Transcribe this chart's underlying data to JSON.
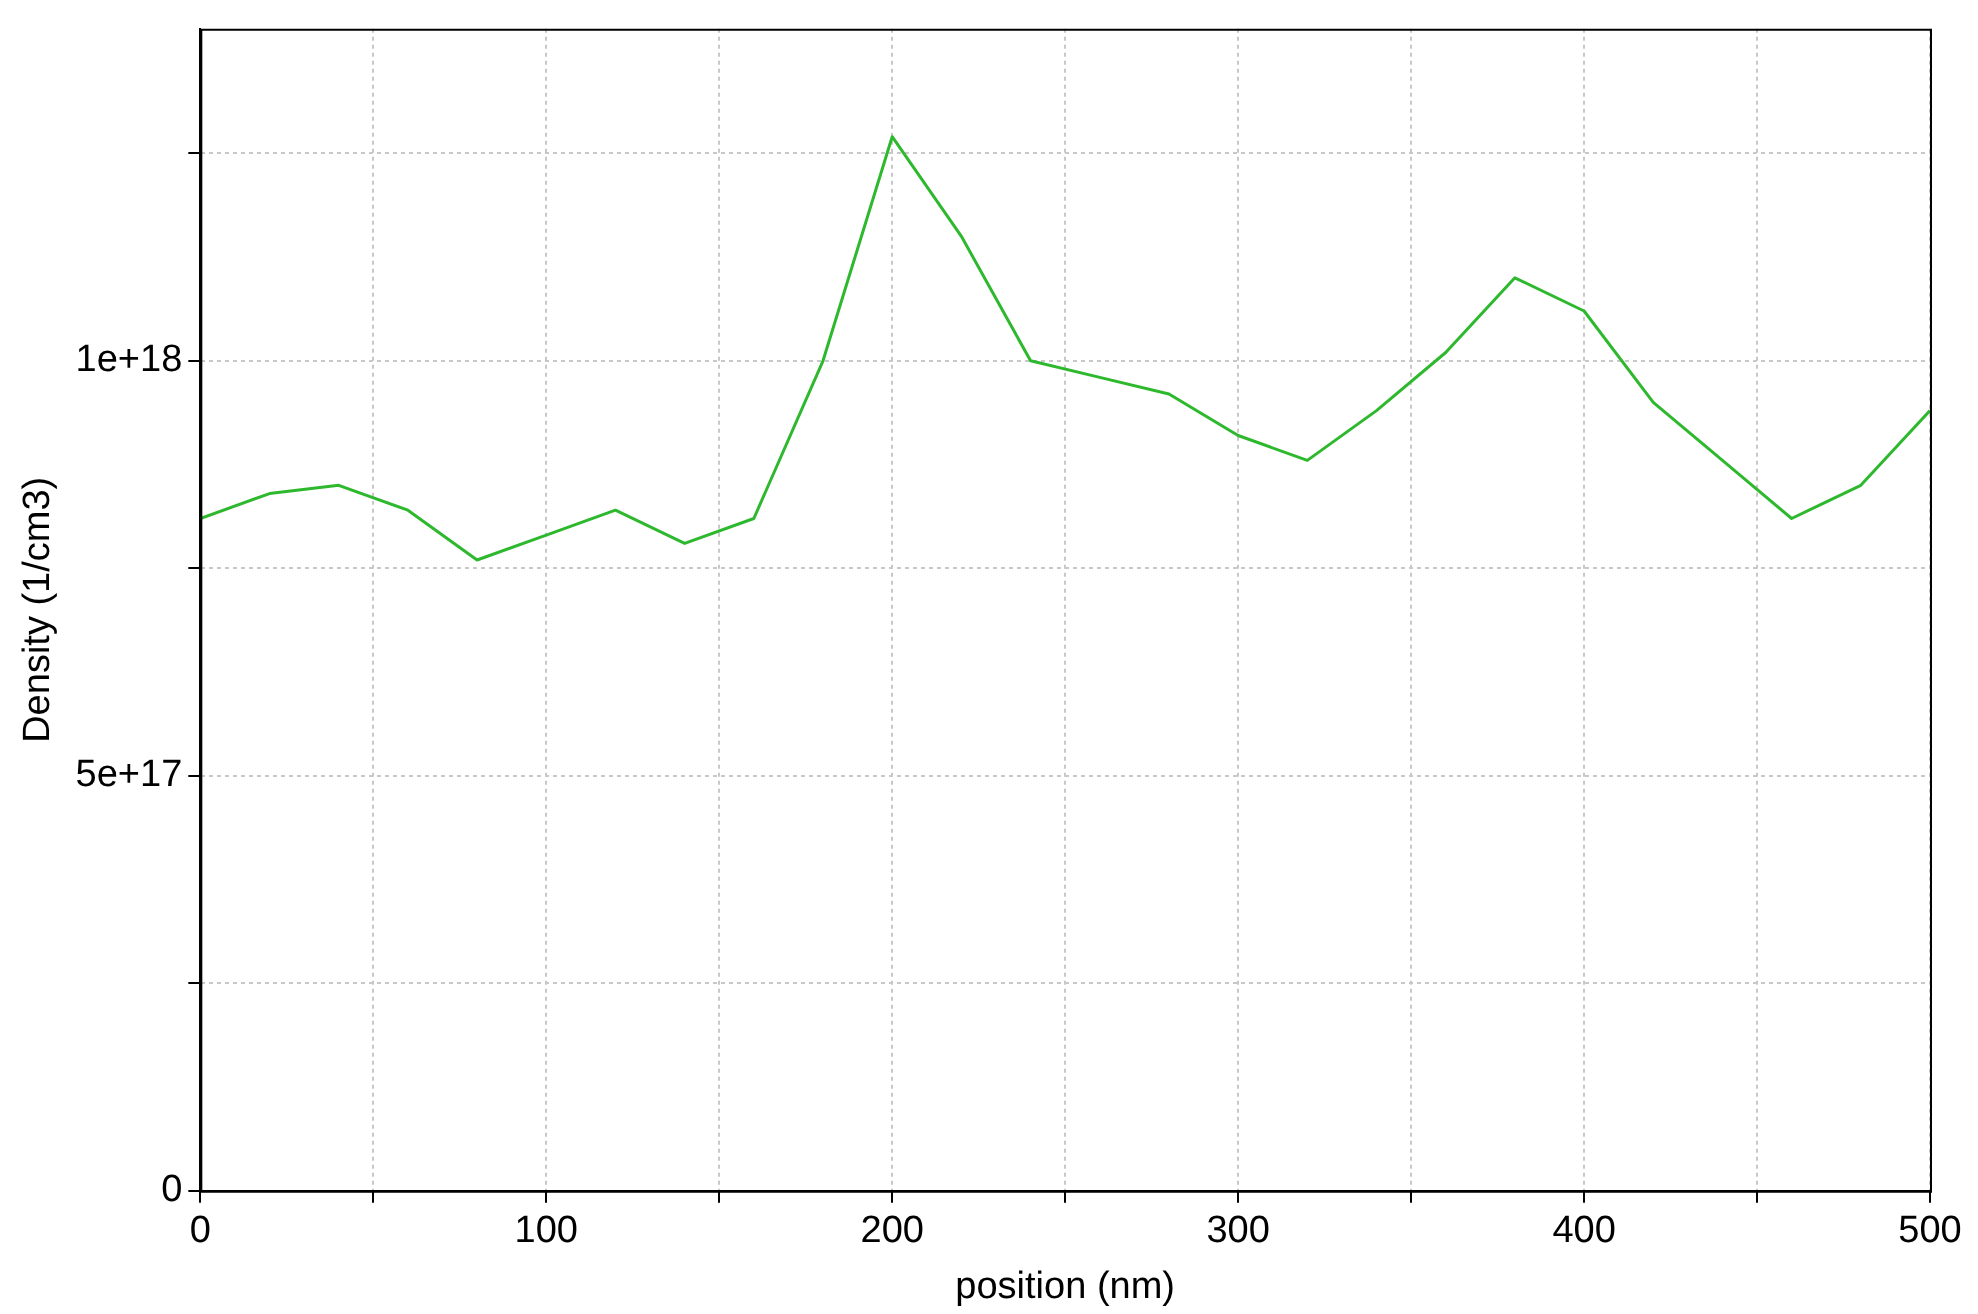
{
  "chart_data": {
    "type": "line",
    "xlabel": "position (nm)",
    "ylabel": "Density (1/cm3)",
    "x": [
      0,
      20,
      40,
      60,
      80,
      100,
      120,
      140,
      160,
      180,
      200,
      220,
      240,
      260,
      280,
      300,
      320,
      340,
      360,
      380,
      400,
      420,
      440,
      460,
      480,
      500
    ],
    "series": [
      {
        "color": "#2eb82e",
        "values": [
          8.1e+17,
          8.4e+17,
          8.5e+17,
          8.2e+17,
          7.6e+17,
          7.9e+17,
          8.2e+17,
          7.8e+17,
          8.1e+17,
          1e+18,
          1.27e+18,
          1.15e+18,
          1e+18,
          9.8e+17,
          9.6e+17,
          9.1e+17,
          8.8e+17,
          9.4e+17,
          1.01e+18,
          1.1e+18,
          1.06e+18,
          9.5e+17,
          8.8e+17,
          8.1e+17,
          8.5e+17,
          9.4e+17
        ]
      }
    ],
    "xlim": [
      0,
      500
    ],
    "xticks": [
      0,
      {
        "value": 50,
        "label": null
      },
      100,
      {
        "value": 150,
        "label": null
      },
      200,
      {
        "value": 250,
        "label": null
      },
      300,
      {
        "value": 350,
        "label": null
      },
      400,
      {
        "value": 450,
        "label": null
      },
      500
    ],
    "ylim": [
      0,
      1.4e+18
    ],
    "yticks": [
      0,
      {
        "value": 2.5e+17,
        "label": null
      },
      {
        "value": 5e+17,
        "label": "5e+17"
      },
      {
        "value": 7.5e+17,
        "label": null
      },
      {
        "value": 1e+18,
        "label": "1e+18"
      },
      {
        "value": 1.25e+18,
        "label": null
      }
    ],
    "grid": true,
    "legend": false,
    "marker": "none",
    "line_style": "solid"
  }
}
